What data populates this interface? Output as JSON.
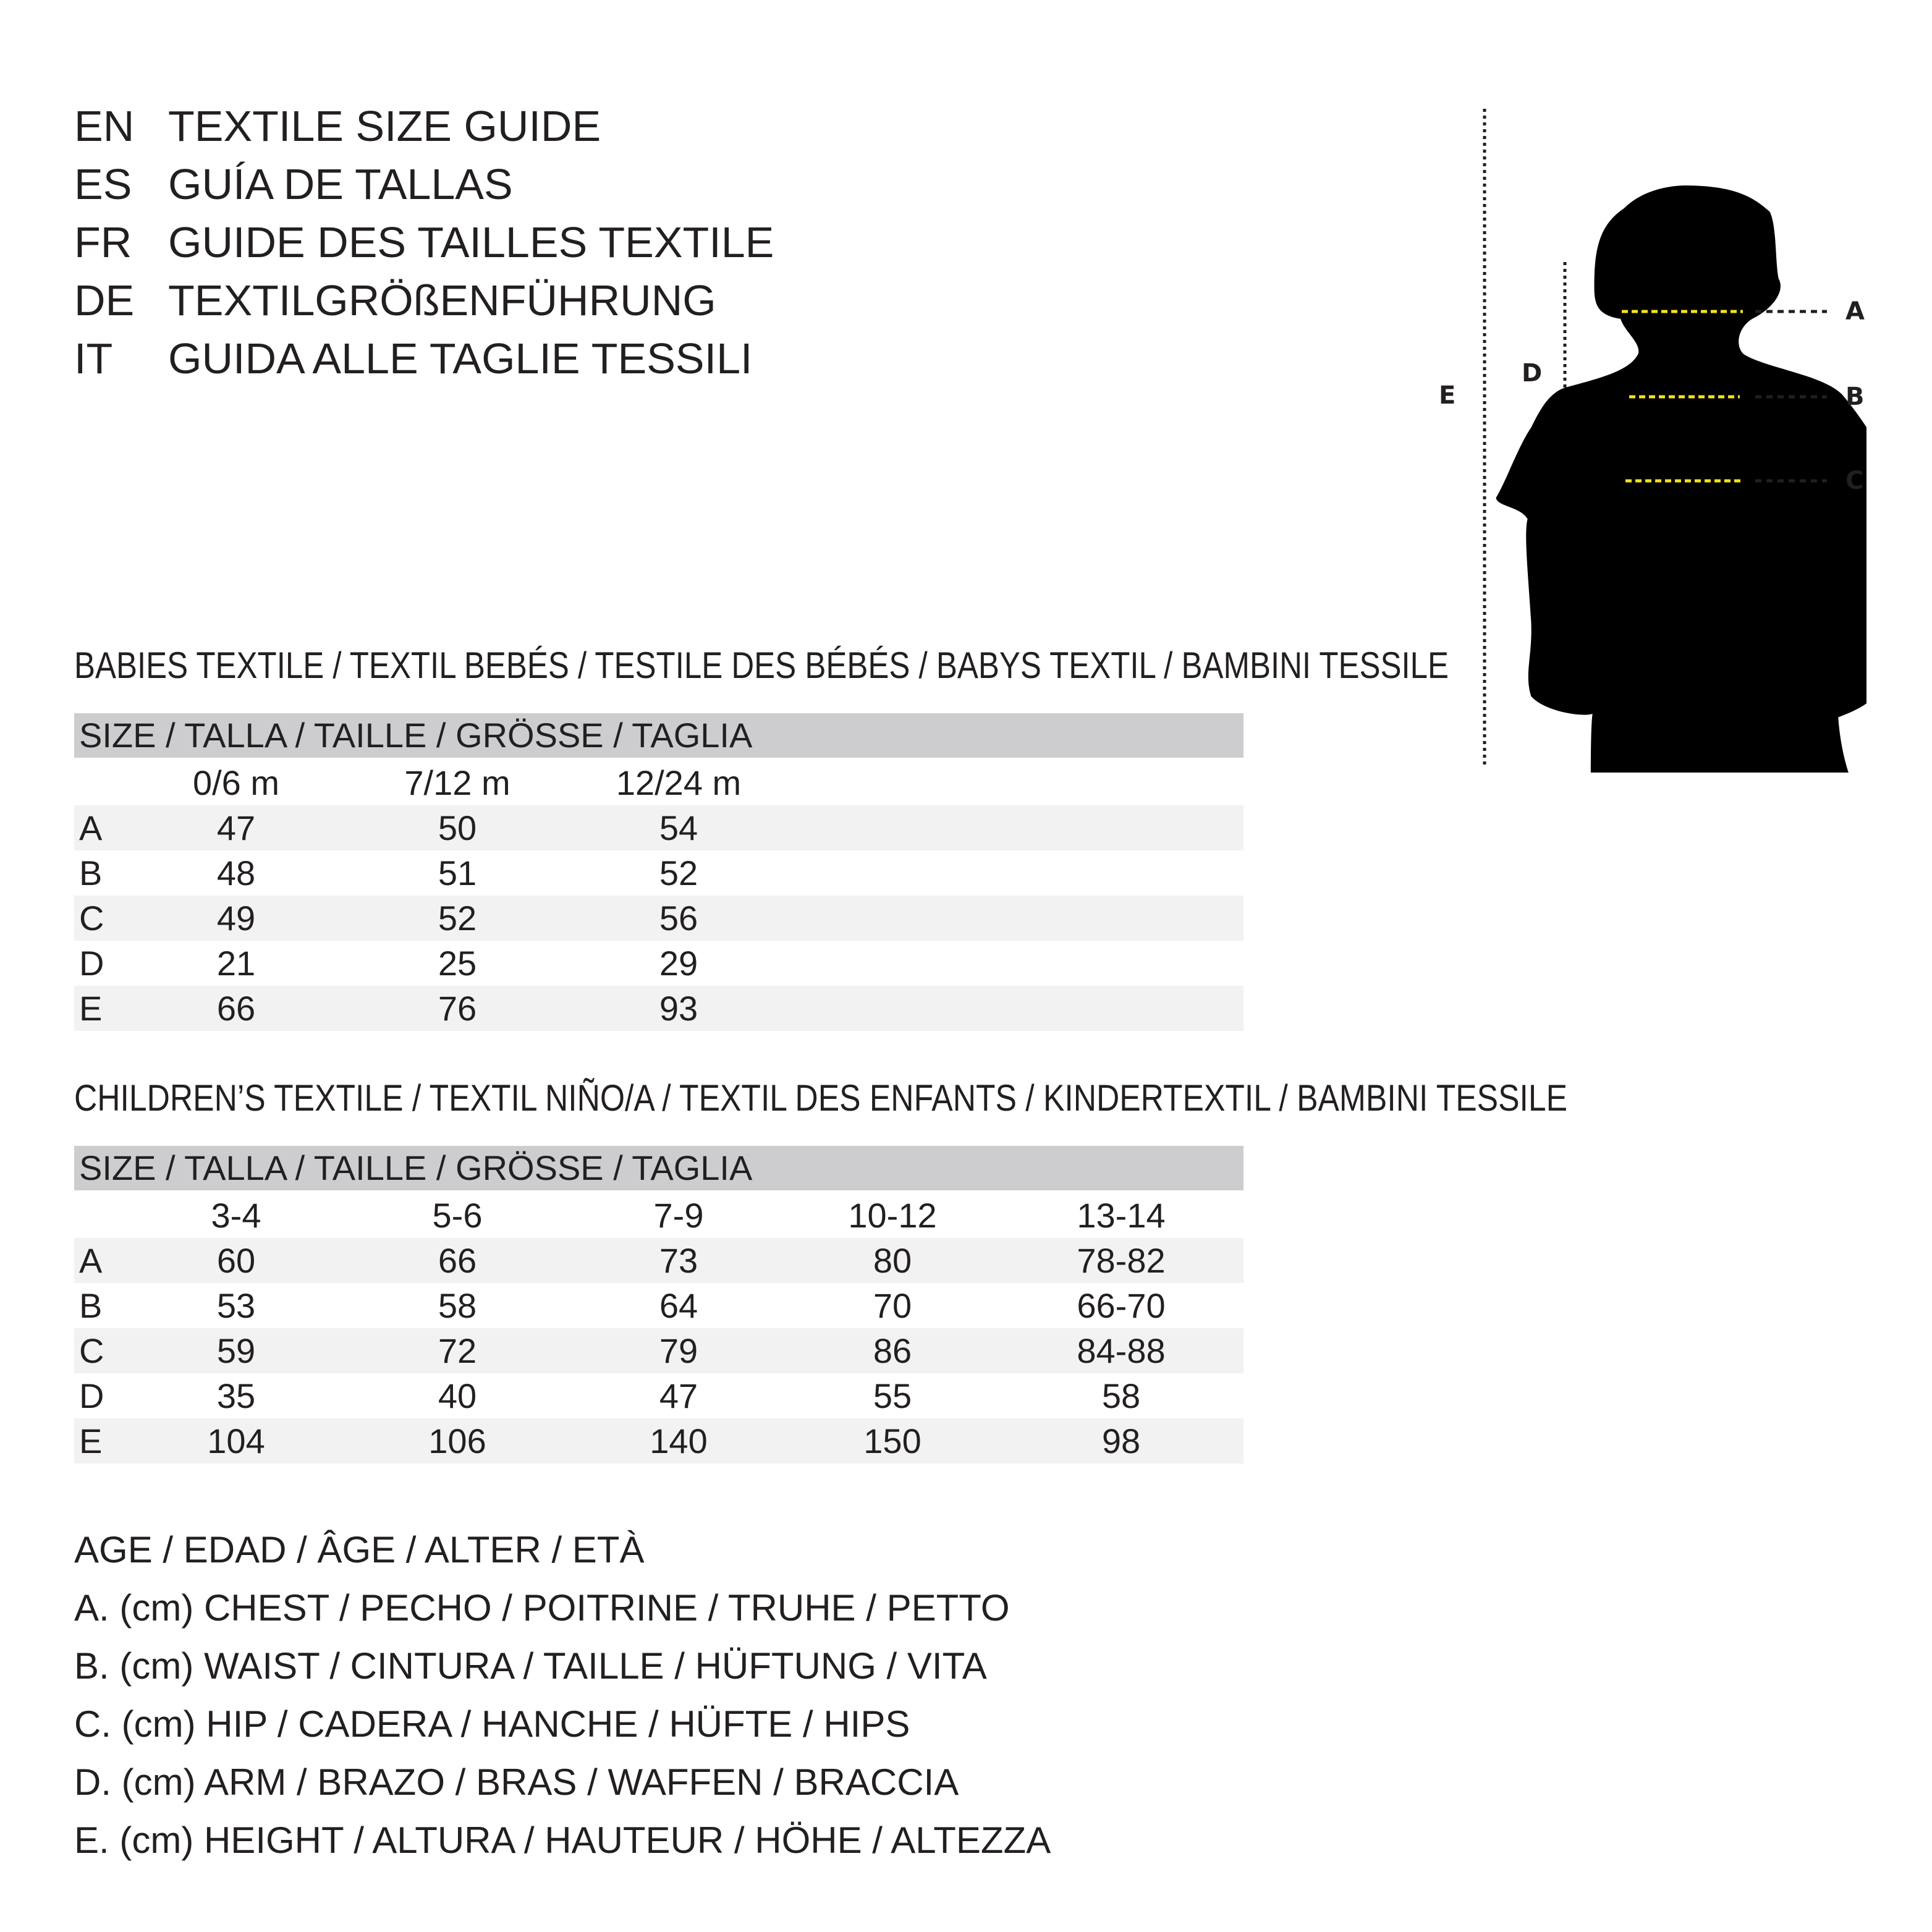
{
  "header": [
    {
      "code": "EN",
      "title": "TEXTILE SIZE GUIDE"
    },
    {
      "code": "ES",
      "title": "GUÍA DE TALLAS"
    },
    {
      "code": "FR",
      "title": "GUIDE DES TAILLES TEXTILE"
    },
    {
      "code": "DE",
      "title": "TEXTILGRÖßENFÜHRUNG"
    },
    {
      "code": "IT",
      "title": "GUIDA ALLE TAGLIE TESSILI"
    }
  ],
  "figure": {
    "labels": {
      "a": "A",
      "b": "B",
      "c": "C",
      "d": "D",
      "e": "E"
    },
    "colors": {
      "measure_line": "#f2e21d",
      "silhouette": "#000000",
      "dotted": "#231f20"
    }
  },
  "babies": {
    "title": "BABIES TEXTILE / TEXTIL BEBÉS / TESTILE DES BÉBÉS / BABYS TEXTIL / BAMBINI TESSILE",
    "size_header": "SIZE / TALLA / TAILLE / GRÖSSE / TAGLIA",
    "columns": [
      "0/6 m",
      "7/12 m",
      "12/24 m"
    ],
    "rows": [
      {
        "label": "A",
        "values": [
          "47",
          "50",
          "54"
        ]
      },
      {
        "label": "B",
        "values": [
          "48",
          "51",
          "52"
        ]
      },
      {
        "label": "C",
        "values": [
          "49",
          "52",
          "56"
        ]
      },
      {
        "label": "D",
        "values": [
          "21",
          "25",
          "29"
        ]
      },
      {
        "label": "E",
        "values": [
          "66",
          "76",
          "93"
        ]
      }
    ]
  },
  "children": {
    "title": "CHILDREN’S TEXTILE / TEXTIL NIÑO/A / TEXTIL DES ENFANTS / KINDERTEXTIL / BAMBINI TESSILE",
    "size_header": "SIZE / TALLA / TAILLE / GRÖSSE / TAGLIA",
    "columns": [
      "3-4",
      "5-6",
      "7-9",
      "10-12",
      "13-14"
    ],
    "rows": [
      {
        "label": "A",
        "values": [
          "60",
          "66",
          "73",
          "80",
          "78-82"
        ]
      },
      {
        "label": "B",
        "values": [
          "53",
          "58",
          "64",
          "70",
          "66-70"
        ]
      },
      {
        "label": "C",
        "values": [
          "59",
          "72",
          "79",
          "86",
          "84-88"
        ]
      },
      {
        "label": "D",
        "values": [
          "35",
          "40",
          "47",
          "55",
          "58"
        ]
      },
      {
        "label": "E",
        "values": [
          "104",
          "106",
          "140",
          "150",
          "98"
        ]
      }
    ]
  },
  "legend": [
    "AGE / EDAD / ÂGE / ALTER / ETÀ",
    "A. (cm) CHEST / PECHO / POITRINE / TRUHE / PETTO",
    "B. (cm) WAIST / CINTURA / TAILLE / HÜFTUNG / VITA",
    "C. (cm) HIP / CADERA / HANCHE / HÜFTE / HIPS",
    "D. (cm) ARM / BRAZO / BRAS / WAFFEN / BRACCIA",
    "E. (cm) HEIGHT / ALTURA / HAUTEUR / HÖHE / ALTEZZA"
  ]
}
